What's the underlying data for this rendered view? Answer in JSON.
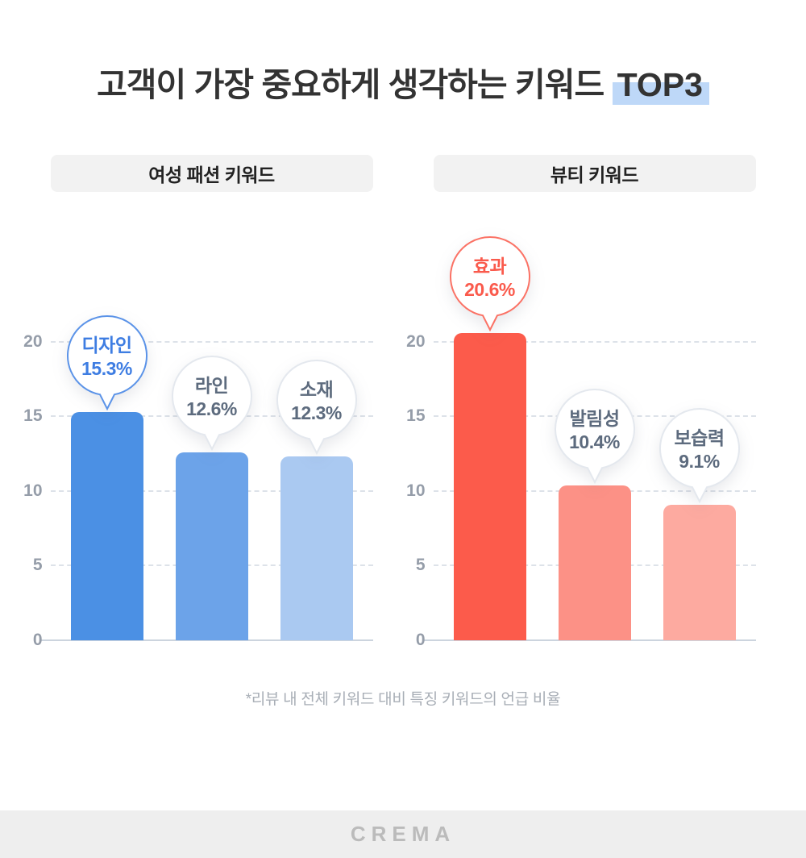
{
  "title": {
    "prefix": "고객이 가장 중요하게 생각하는 키워드",
    "highlight": "TOP3"
  },
  "footnote": "*리뷰 내 전체 키워드 대비 특징 키워드의 언급 비율",
  "footer_logo": "CREMA",
  "colors": {
    "title_highlight": "#bed8f8",
    "chip_background": "#f2f2f2",
    "gridline": "#dde2e9",
    "axis_line": "#ccd4de",
    "tick_text": "#959da9",
    "neutral_bubble_border": "#e4e8ee",
    "neutral_bubble_text": "#5d6b7e"
  },
  "chart_data": [
    {
      "type": "bar",
      "title": "여성 패션 키워드",
      "categories": [
        "디자인",
        "라인",
        "소재"
      ],
      "values": [
        15.3,
        12.6,
        12.3
      ],
      "value_labels": [
        "15.3%",
        "12.6%",
        "12.3%"
      ],
      "ylim": [
        0,
        20
      ],
      "yticks": [
        0,
        5,
        10,
        15,
        20
      ],
      "grid": "horizontal dashed",
      "legend": "none",
      "bar_colors": [
        "#4b90e4",
        "#6ca3e9",
        "#aac9f1"
      ],
      "accent_border": "#5b93e8",
      "accent_text": "#3e7de2",
      "bubble_border": "#e4e8ee",
      "bubble_text": "#5d6b7e"
    },
    {
      "type": "bar",
      "title": "뷰티 키워드",
      "categories": [
        "효과",
        "발림성",
        "보습력"
      ],
      "values": [
        20.6,
        10.4,
        9.1
      ],
      "value_labels": [
        "20.6%",
        "10.4%",
        "9.1%"
      ],
      "ylim": [
        0,
        20
      ],
      "yticks": [
        0,
        5,
        10,
        15,
        20
      ],
      "grid": "horizontal dashed",
      "legend": "none",
      "bar_colors": [
        "#fc5b4b",
        "#fc9186",
        "#fdaaa0"
      ],
      "accent_border": "#fb7265",
      "accent_text": "#fa5a4c",
      "bubble_border": "#e4e8ee",
      "bubble_text": "#5d6b7e"
    }
  ]
}
